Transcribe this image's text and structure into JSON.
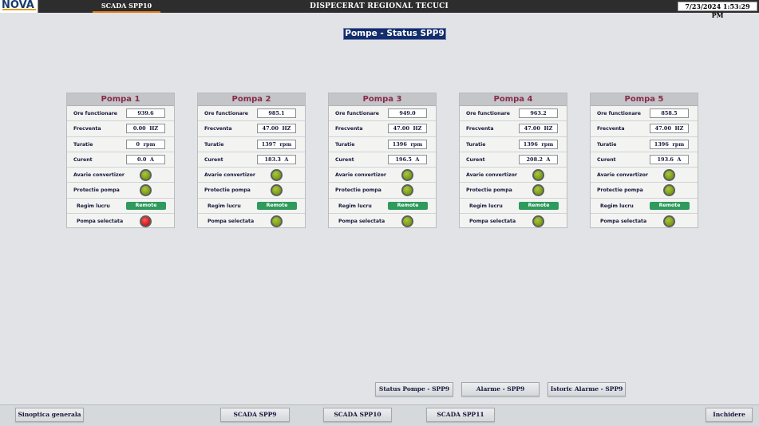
{
  "header": {
    "logo_text": "NOVA",
    "active_tab": "SCADA SPP10",
    "title": "DISPECERAT REGIONAL TECUCI",
    "datetime": "7/23/2024 1:53:29 PM"
  },
  "page_title": "Pompe - Status SPP9",
  "labels": {
    "ore": "Ore functionare",
    "frecventa": "Frecventa",
    "turatie": "Turatie",
    "curent": "Curent",
    "avarie": "Avarie convertizor",
    "protectie": "Protectie pompa",
    "regim": "Regim lucru",
    "selectata": "Pompa selectata"
  },
  "pumps": [
    {
      "name": "Pompa 1",
      "ore": "939.6",
      "frecventa": "0.00  HZ",
      "turatie": "0  rpm",
      "curent": "0.0  A",
      "avarie": "green",
      "protectie": "green",
      "regim": "Remote",
      "selectata": "red"
    },
    {
      "name": "Pompa 2",
      "ore": "985.1",
      "frecventa": "47.00  HZ",
      "turatie": "1397  rpm",
      "curent": "183.3  A",
      "avarie": "green",
      "protectie": "green",
      "regim": "Remote",
      "selectata": "green"
    },
    {
      "name": "Pompa 3",
      "ore": "949.0",
      "frecventa": "47.00  HZ",
      "turatie": "1396  rpm",
      "curent": "196.5  A",
      "avarie": "green",
      "protectie": "green",
      "regim": "Remote",
      "selectata": "green"
    },
    {
      "name": "Pompa 4",
      "ore": "963.2",
      "frecventa": "47.00  HZ",
      "turatie": "1396  rpm",
      "curent": "208.2  A",
      "avarie": "green",
      "protectie": "green",
      "regim": "Remote",
      "selectata": "green"
    },
    {
      "name": "Pompa 5",
      "ore": "858.5",
      "frecventa": "47.00  HZ",
      "turatie": "1396  rpm",
      "curent": "193.6  A",
      "avarie": "green",
      "protectie": "green",
      "regim": "Remote",
      "selectata": "green"
    }
  ],
  "nav_buttons": {
    "status_pompe": "Status Pompe - SPP9",
    "alarme": "Alarme - SPP9",
    "istoric": "Istoric Alarme - SPP9"
  },
  "footer": {
    "sinoptica": "Sinoptica generala",
    "spp9": "SCADA SPP9",
    "spp10": "SCADA SPP10",
    "spp11": "SCADA SPP11",
    "inchidere": "Inchidere"
  },
  "colors": {
    "led_green": "#7a9a10",
    "led_red": "#c81818",
    "remote": "#2e9a5c",
    "title_bg": "#142d6b",
    "pump_title": "#8a2a48"
  }
}
